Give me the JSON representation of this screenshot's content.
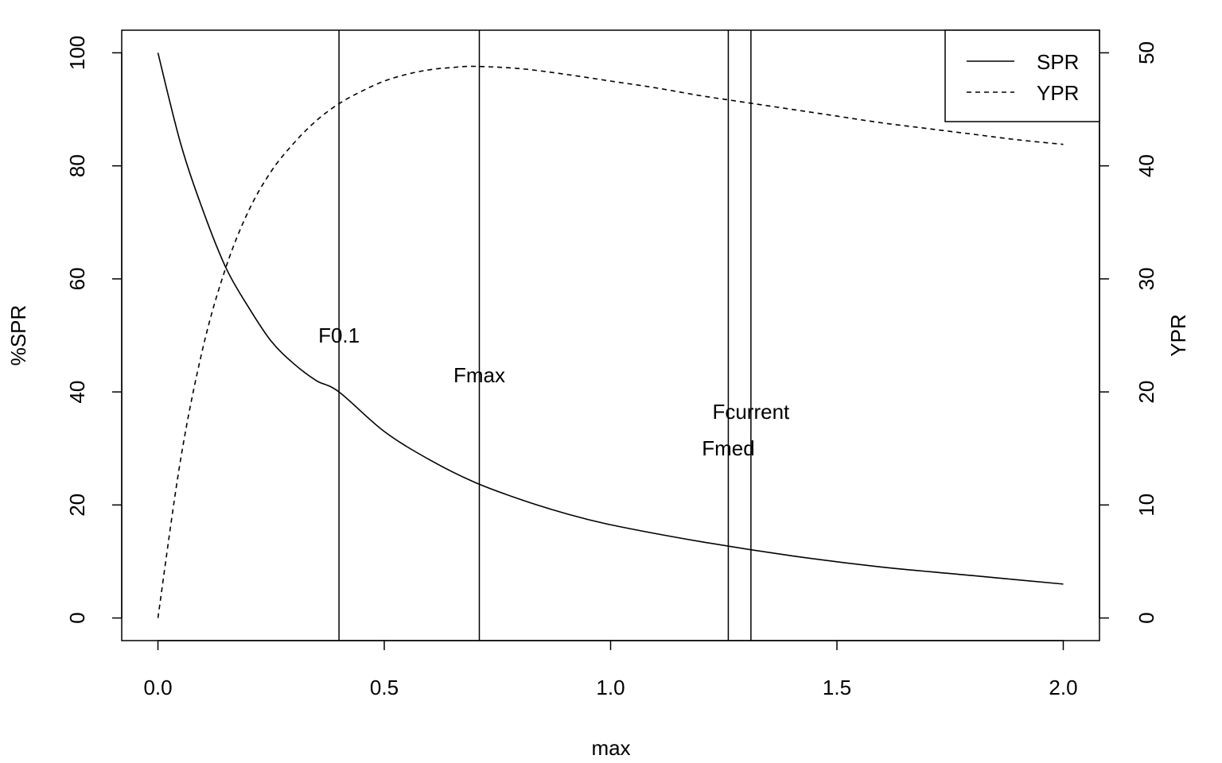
{
  "chart_data": {
    "type": "line",
    "xlabel": "max",
    "ylabel_left": "%SPR",
    "ylabel_right": "YPR",
    "xlim": [
      -0.08,
      2.08
    ],
    "ylim_left": [
      -4,
      104
    ],
    "ylim_right": [
      -2,
      52
    ],
    "x_ticks": [
      0.0,
      0.5,
      1.0,
      1.5,
      2.0
    ],
    "x_tick_labels": [
      "0.0",
      "0.5",
      "1.0",
      "1.5",
      "2.0"
    ],
    "y_left_ticks": [
      0,
      20,
      40,
      60,
      80,
      100
    ],
    "y_left_tick_labels": [
      "0",
      "20",
      "40",
      "60",
      "80",
      "100"
    ],
    "y_right_ticks": [
      0,
      10,
      20,
      30,
      40,
      50
    ],
    "y_right_tick_labels": [
      "0",
      "10",
      "20",
      "30",
      "40",
      "50"
    ],
    "legend_position": "top-right",
    "series": [
      {
        "name": "SPR",
        "axis": "left",
        "line_style": "solid",
        "x": [
          0.0,
          0.05,
          0.1,
          0.15,
          0.2,
          0.25,
          0.3,
          0.35,
          0.4,
          0.5,
          0.6,
          0.7,
          0.8,
          0.9,
          1.0,
          1.2,
          1.4,
          1.6,
          1.8,
          2.0
        ],
        "values": [
          100,
          84,
          72,
          62,
          55,
          49,
          45,
          42,
          40,
          33,
          28,
          24,
          21,
          18.5,
          16.5,
          13.5,
          11,
          9,
          7.5,
          6
        ]
      },
      {
        "name": "YPR",
        "axis": "right",
        "line_style": "dashed",
        "x": [
          0.0,
          0.05,
          0.1,
          0.15,
          0.2,
          0.25,
          0.3,
          0.35,
          0.4,
          0.45,
          0.5,
          0.55,
          0.6,
          0.65,
          0.7,
          0.8,
          0.9,
          1.0,
          1.1,
          1.2,
          1.3,
          1.4,
          1.5,
          1.6,
          1.7,
          1.8,
          1.9,
          2.0
        ],
        "values": [
          0,
          14,
          24,
          31,
          36,
          39.5,
          42,
          44,
          45.5,
          46.6,
          47.5,
          48.1,
          48.5,
          48.7,
          48.8,
          48.6,
          48.1,
          47.5,
          46.9,
          46.2,
          45.6,
          45.0,
          44.4,
          43.8,
          43.3,
          42.8,
          42.3,
          41.9
        ]
      }
    ],
    "reference_lines": [
      {
        "label": "F0.1",
        "x": 0.4,
        "label_y": 50
      },
      {
        "label": "Fmax",
        "x": 0.71,
        "label_y": 43
      },
      {
        "label": "Fmed",
        "x": 1.26,
        "label_y": 30
      },
      {
        "label": "Fcurrent",
        "x": 1.31,
        "label_y": 36.5
      }
    ]
  }
}
